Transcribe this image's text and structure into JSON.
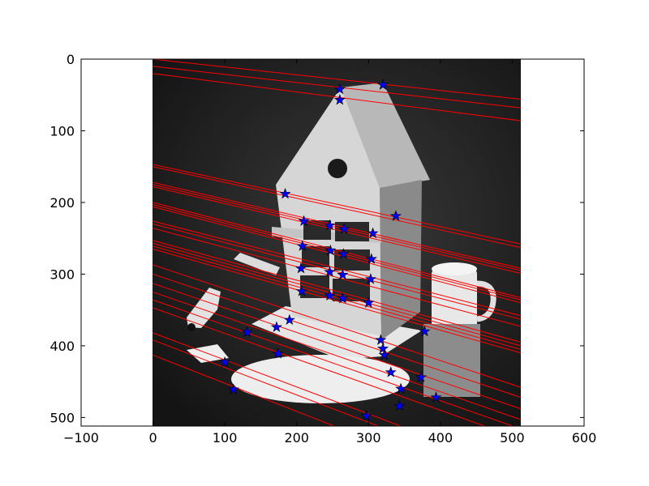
{
  "chart_data": {
    "type": "scatter",
    "title": "",
    "xlabel": "",
    "ylabel": "",
    "xlim": [
      -100,
      600
    ],
    "ylim": [
      512,
      0
    ],
    "y_inverted": true,
    "grid": false,
    "x_ticks": [
      -100,
      0,
      100,
      200,
      300,
      400,
      500,
      600
    ],
    "y_ticks": [
      0,
      100,
      200,
      300,
      400,
      500
    ],
    "background_image": {
      "description_key": "grayscale photo of a cardboard toy house with a mug, toy car and papers",
      "extent": [
        0,
        512,
        512,
        0
      ]
    },
    "point_color": "#0000ff",
    "point_edge_color": "#000000",
    "line_color": "#ff0000",
    "points": [
      {
        "x": 260,
        "y": 42
      },
      {
        "x": 320,
        "y": 36
      },
      {
        "x": 260,
        "y": 57
      },
      {
        "x": 184,
        "y": 188
      },
      {
        "x": 210,
        "y": 226
      },
      {
        "x": 246,
        "y": 232
      },
      {
        "x": 266,
        "y": 237
      },
      {
        "x": 306,
        "y": 243
      },
      {
        "x": 338,
        "y": 219
      },
      {
        "x": 208,
        "y": 261
      },
      {
        "x": 247,
        "y": 267
      },
      {
        "x": 265,
        "y": 272
      },
      {
        "x": 304,
        "y": 279
      },
      {
        "x": 206,
        "y": 292
      },
      {
        "x": 246,
        "y": 297
      },
      {
        "x": 264,
        "y": 301
      },
      {
        "x": 303,
        "y": 307
      },
      {
        "x": 207,
        "y": 324
      },
      {
        "x": 246,
        "y": 330
      },
      {
        "x": 264,
        "y": 334
      },
      {
        "x": 300,
        "y": 340
      },
      {
        "x": 190,
        "y": 364
      },
      {
        "x": 172,
        "y": 374
      },
      {
        "x": 131,
        "y": 381
      },
      {
        "x": 378,
        "y": 380
      },
      {
        "x": 317,
        "y": 392
      },
      {
        "x": 320,
        "y": 404
      },
      {
        "x": 322,
        "y": 413
      },
      {
        "x": 174,
        "y": 411
      },
      {
        "x": 100,
        "y": 423
      },
      {
        "x": 331,
        "y": 437
      },
      {
        "x": 373,
        "y": 444
      },
      {
        "x": 345,
        "y": 460
      },
      {
        "x": 112,
        "y": 461
      },
      {
        "x": 394,
        "y": 472
      },
      {
        "x": 343,
        "y": 484
      },
      {
        "x": 297,
        "y": 498
      }
    ],
    "epipolar_lines": [
      {
        "y_at_x0": 0,
        "y_at_x512": 56
      },
      {
        "y_at_x0": 10,
        "y_at_x512": 68
      },
      {
        "y_at_x0": 20,
        "y_at_x512": 86
      },
      {
        "y_at_x0": 147,
        "y_at_x512": 258
      },
      {
        "y_at_x0": 150,
        "y_at_x512": 263
      },
      {
        "y_at_x0": 172,
        "y_at_x512": 292
      },
      {
        "y_at_x0": 175,
        "y_at_x512": 295
      },
      {
        "y_at_x0": 178,
        "y_at_x512": 299
      },
      {
        "y_at_x0": 200,
        "y_at_x512": 333
      },
      {
        "y_at_x0": 203,
        "y_at_x512": 336
      },
      {
        "y_at_x0": 206,
        "y_at_x512": 340
      },
      {
        "y_at_x0": 226,
        "y_at_x512": 358
      },
      {
        "y_at_x0": 230,
        "y_at_x512": 363
      },
      {
        "y_at_x0": 236,
        "y_at_x512": 373
      },
      {
        "y_at_x0": 253,
        "y_at_x512": 395
      },
      {
        "y_at_x0": 257,
        "y_at_x512": 400
      },
      {
        "y_at_x0": 261,
        "y_at_x512": 405
      },
      {
        "y_at_x0": 265,
        "y_at_x512": 410
      },
      {
        "y_at_x0": 287,
        "y_at_x512": 458
      },
      {
        "y_at_x0": 300,
        "y_at_x512": 472
      },
      {
        "y_at_x0": 313,
        "y_at_x512": 488
      },
      {
        "y_at_x0": 325,
        "y_at_x512": 503
      },
      {
        "y_at_x0": 336,
        "y_at_x512": 516
      },
      {
        "y_at_x0": 347,
        "y_at_x512": 530
      },
      {
        "y_at_x0": 382,
        "y_at_x512": 575
      },
      {
        "y_at_x0": 392,
        "y_at_x512": 588
      },
      {
        "y_at_x0": 413,
        "y_at_x512": 614
      }
    ]
  }
}
